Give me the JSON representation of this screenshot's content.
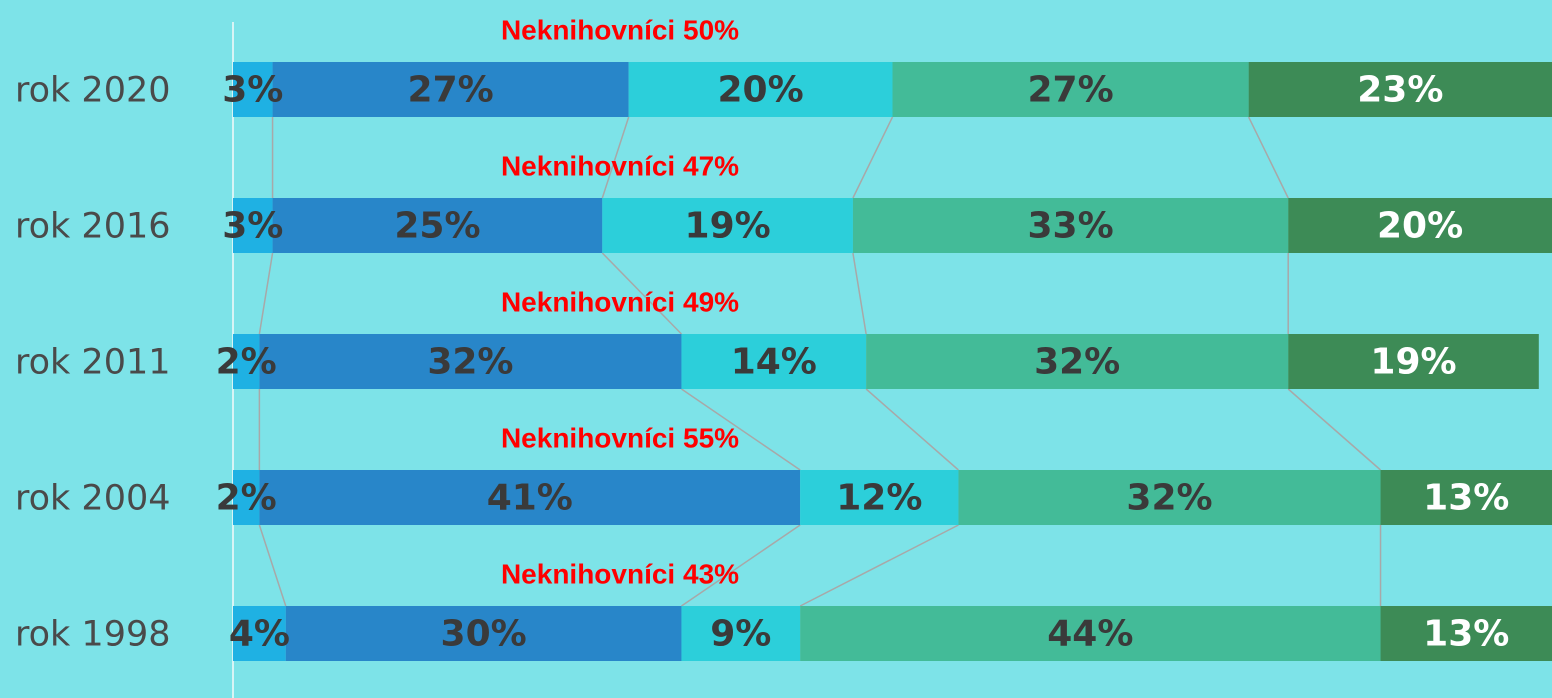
{
  "chart_data": {
    "type": "stacked-bar",
    "orientation": "horizontal",
    "categories": [
      "rok 2020",
      "rok 2016",
      "rok 2011",
      "rok 2004",
      "rok 1998"
    ],
    "series": [
      {
        "color": "#1fb1e3",
        "values": [
          3,
          3,
          2,
          2,
          4
        ],
        "value_labels": [
          "3%",
          "3%",
          "2%",
          "2%",
          "4%"
        ]
      },
      {
        "color": "#2886c9",
        "values": [
          27,
          25,
          32,
          41,
          30
        ],
        "value_labels": [
          "27%",
          "25%",
          "32%",
          "41%",
          "30%"
        ]
      },
      {
        "color": "#2ccfda",
        "values": [
          20,
          19,
          14,
          12,
          9
        ],
        "value_labels": [
          "20%",
          "19%",
          "14%",
          "12%",
          "9%"
        ]
      },
      {
        "color": "#43bb98",
        "values": [
          27,
          33,
          32,
          32,
          44
        ],
        "value_labels": [
          "27%",
          "33%",
          "32%",
          "32%",
          "44%"
        ]
      },
      {
        "color": "#3d8b56",
        "values": [
          23,
          20,
          19,
          13,
          13
        ],
        "value_labels": [
          "23%",
          "20%",
          "19%",
          "13%",
          "13%"
        ]
      }
    ],
    "annotations": [
      "Neknihovníci 50%",
      "Neknihovníci 47%",
      "Neknihovníci 49%",
      "Neknihovníci 55%",
      "Neknihovníci 43%"
    ],
    "xlim": [
      0,
      100
    ]
  }
}
